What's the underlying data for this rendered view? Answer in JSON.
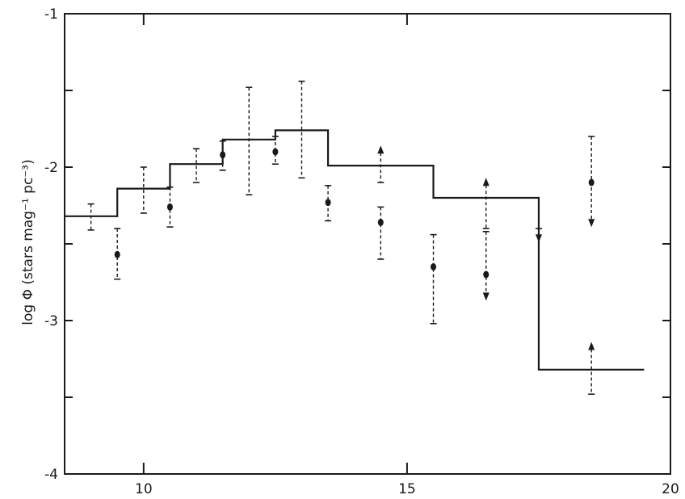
{
  "chart_data": {
    "type": "scatter",
    "title": "",
    "xlabel": "",
    "ylabel": "log Φ (stars mag⁻¹ pc⁻³)",
    "xlim": [
      8.5,
      20
    ],
    "ylim": [
      -4,
      -1
    ],
    "xticks": [
      {
        "value": 10,
        "label": "10"
      },
      {
        "value": 15,
        "label": "15"
      },
      {
        "value": 20,
        "label": "20"
      }
    ],
    "yticks": [
      {
        "value": -1,
        "label": "-1"
      },
      {
        "value": -2,
        "label": "-2"
      },
      {
        "value": -3,
        "label": "-3"
      },
      {
        "value": -4,
        "label": "-4"
      }
    ],
    "grid": false,
    "legend": "none",
    "colors": {
      "ink": "#1a1a1a",
      "background": "#ffffff"
    },
    "series": [
      {
        "kind": "step",
        "steps": [
          {
            "x0": 8.5,
            "x1": 9.5,
            "y": -2.32
          },
          {
            "x0": 9.5,
            "x1": 10.5,
            "y": -2.14
          },
          {
            "x0": 10.5,
            "x1": 11.5,
            "y": -1.98
          },
          {
            "x0": 11.5,
            "x1": 12.5,
            "y": -1.82
          },
          {
            "x0": 12.5,
            "x1": 13.5,
            "y": -1.76
          },
          {
            "x0": 13.5,
            "x1": 15.5,
            "y": -1.99
          },
          {
            "x0": 15.5,
            "x1": 17.5,
            "y": -2.2
          },
          {
            "x0": 17.5,
            "x1": 19.5,
            "y": -3.32
          }
        ]
      },
      {
        "kind": "points",
        "points": [
          {
            "x": 9.0,
            "y": null,
            "lo": -2.41,
            "hi": -2.24
          },
          {
            "x": 9.5,
            "y": -2.57,
            "lo": -2.73,
            "hi": -2.4
          },
          {
            "x": 10.0,
            "y": null,
            "lo": -2.3,
            "hi": -2.0
          },
          {
            "x": 10.5,
            "y": -2.26,
            "lo": -2.39,
            "hi": -2.13
          },
          {
            "x": 11.0,
            "y": null,
            "lo": -2.1,
            "hi": -1.88
          },
          {
            "x": 11.5,
            "y": -1.92,
            "lo": -2.02,
            "hi": -1.83
          },
          {
            "x": 12.0,
            "y": null,
            "lo": -2.18,
            "hi": -1.48
          },
          {
            "x": 12.5,
            "y": -1.9,
            "lo": -1.98,
            "hi": -1.8
          },
          {
            "x": 13.0,
            "y": null,
            "lo": -2.07,
            "hi": -1.44
          },
          {
            "x": 13.5,
            "y": -2.23,
            "lo": -2.35,
            "hi": -2.12
          },
          {
            "x": 14.5,
            "y": null,
            "lo": -2.1,
            "hi": -1.87,
            "limit": "lower"
          },
          {
            "x": 14.5,
            "y": -2.36,
            "lo": -2.6,
            "hi": -2.26
          },
          {
            "x": 15.5,
            "y": -2.65,
            "lo": -3.02,
            "hi": -2.44
          },
          {
            "x": 16.5,
            "y": null,
            "lo": -2.4,
            "hi": -2.08,
            "limit": "lower"
          },
          {
            "x": 16.5,
            "y": -2.7,
            "lo": -2.86,
            "hi": -2.42,
            "limit": "upper"
          },
          {
            "x": 17.5,
            "y": null,
            "lo": -2.48,
            "hi": -2.4,
            "limit": "upper"
          },
          {
            "x": 18.5,
            "y": -2.1,
            "lo": -2.38,
            "hi": -1.8,
            "limit": "upper"
          },
          {
            "x": 18.5,
            "y": null,
            "lo": -3.48,
            "hi": -3.15,
            "limit": "lower"
          }
        ]
      }
    ]
  }
}
